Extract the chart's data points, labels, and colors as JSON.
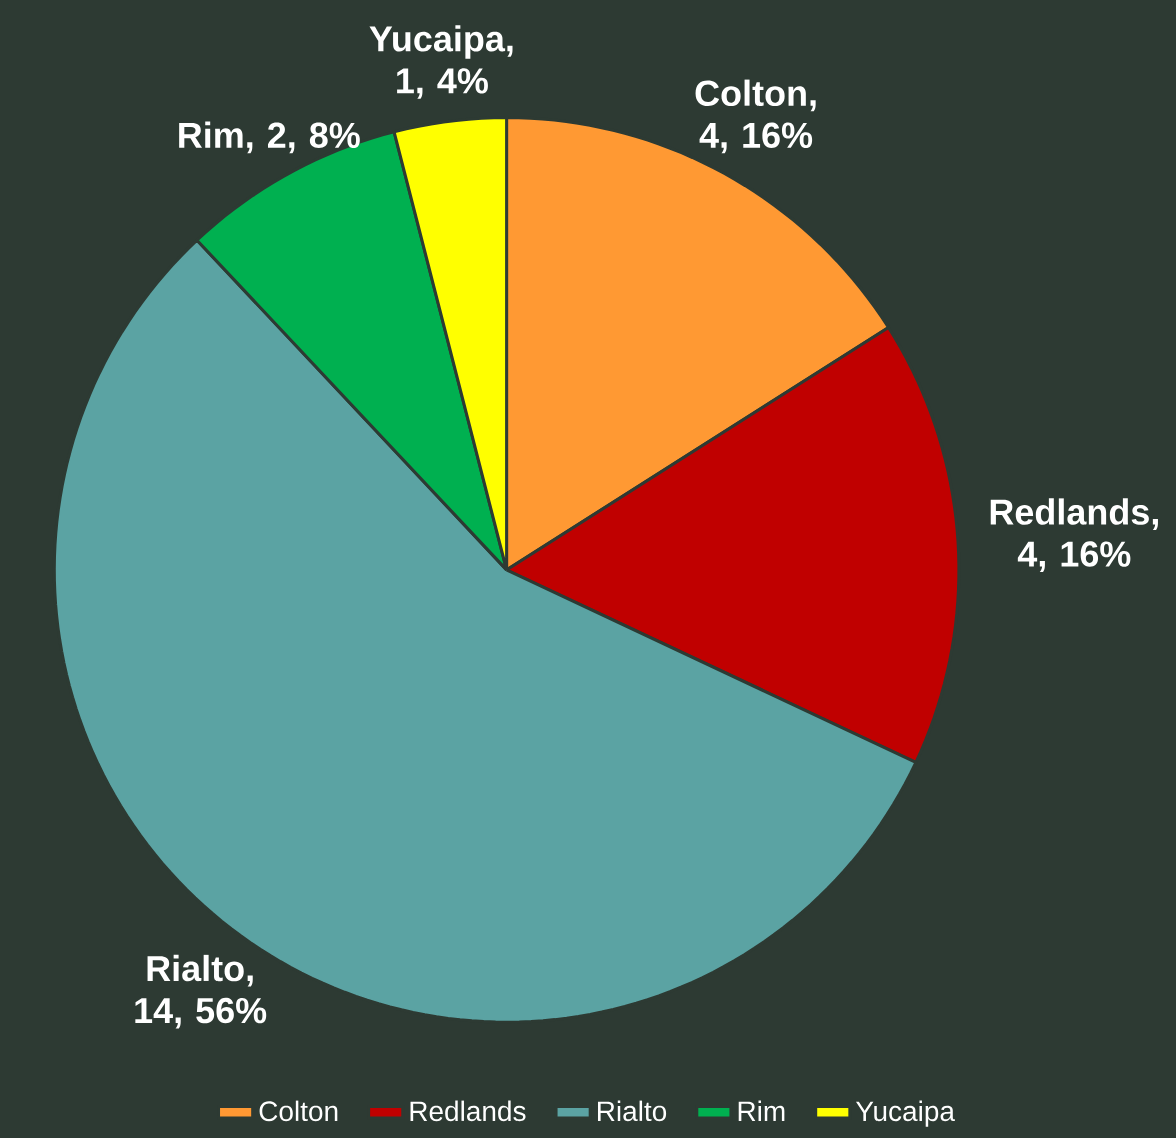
{
  "chart_data": {
    "type": "pie",
    "categories": [
      "Colton",
      "Redlands",
      "Rialto",
      "Rim",
      "Yucaipa"
    ],
    "values": [
      4,
      4,
      14,
      2,
      1
    ],
    "colors": [
      "#ff9933",
      "#c00000",
      "#5ba3a3",
      "#00b050",
      "#ffff00"
    ],
    "value_labels": [
      "Colton, 4, 16%",
      "Redlands, 4, 16%",
      "Rialto, 14, 56%",
      "Rim, 2, 8%",
      "Yucaipa, 1, 4%"
    ],
    "legend": "bottom"
  }
}
